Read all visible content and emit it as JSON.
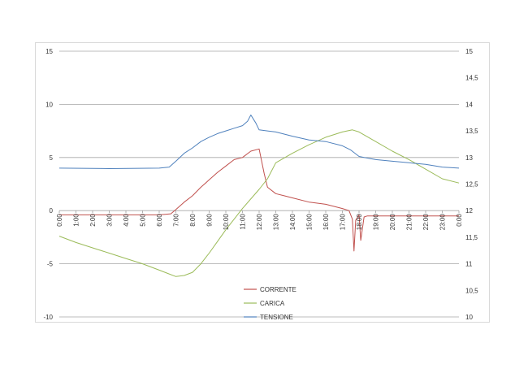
{
  "chart_data": {
    "type": "line",
    "title": "",
    "xlabel": "",
    "ylabel": "",
    "x_ticks": [
      "0:00",
      "1:00",
      "2:00",
      "3:00",
      "4:00",
      "5:00",
      "6:00",
      "7:00",
      "8:00",
      "9:00",
      "10:00",
      "11:00",
      "12:00",
      "13:00",
      "14:00",
      "15:00",
      "16:00",
      "17:00",
      "18:00",
      "19:00",
      "20:00",
      "21:00",
      "22:00",
      "23:00",
      "0:00"
    ],
    "y_left": {
      "ylim": [
        -10,
        15
      ],
      "ticks": [
        -10,
        -5,
        0,
        5,
        10,
        15
      ]
    },
    "y_right": {
      "ylim": [
        10,
        15
      ],
      "ticks": [
        "10",
        "10,5",
        "11",
        "11,5",
        "12",
        "12,5",
        "13",
        "13,5",
        "14",
        "14,5",
        "15"
      ]
    },
    "grid": true,
    "legend_position": "bottom-center",
    "series": [
      {
        "name": "CORRENTE",
        "axis": "left",
        "color": "#c0504d",
        "x": [
          0,
          6,
          6.7,
          7.0,
          7.5,
          8,
          8.5,
          9,
          9.5,
          10,
          10.5,
          11,
          11.5,
          12,
          12.3,
          12.5,
          13,
          13.5,
          14,
          15,
          16,
          17,
          17.4,
          17.6,
          17.7,
          17.8,
          18,
          18.1,
          18.3,
          18.5,
          19,
          20,
          21,
          22,
          23,
          24
        ],
        "y": [
          -0.4,
          -0.4,
          -0.3,
          0.1,
          0.8,
          1.4,
          2.2,
          2.9,
          3.6,
          4.2,
          4.8,
          5.0,
          5.6,
          5.8,
          3.5,
          2.2,
          1.6,
          1.4,
          1.2,
          0.8,
          0.6,
          0.2,
          0.0,
          -0.8,
          -3.8,
          -0.9,
          -0.4,
          -2.8,
          -0.6,
          -0.5,
          -0.5,
          -0.5,
          -0.5,
          -0.5,
          -0.5,
          -0.5
        ]
      },
      {
        "name": "CARICA",
        "axis": "left",
        "color": "#9bbb59",
        "x": [
          0,
          1,
          2,
          3,
          4,
          5,
          6,
          6.5,
          7.0,
          7.5,
          8,
          8.5,
          9,
          9.5,
          10,
          11,
          12,
          12.5,
          13,
          14,
          15,
          16,
          17,
          17.6,
          18,
          19,
          20,
          21,
          22,
          23,
          24
        ],
        "y": [
          -2.4,
          -3.0,
          -3.5,
          -4.0,
          -4.5,
          -5.0,
          -5.6,
          -5.9,
          -6.2,
          -6.1,
          -5.8,
          -5.0,
          -4.0,
          -2.9,
          -1.8,
          0.2,
          2.0,
          3.0,
          4.5,
          5.4,
          6.2,
          6.9,
          7.4,
          7.6,
          7.4,
          6.5,
          5.6,
          4.8,
          3.9,
          3.0,
          2.6
        ]
      },
      {
        "name": "TENSIONE",
        "axis": "right",
        "color": "#4f81bd",
        "x": [
          0,
          3,
          6,
          6.6,
          7.0,
          7.5,
          8,
          8.5,
          9,
          9.5,
          10,
          10.5,
          11,
          11.3,
          11.5,
          11.8,
          12,
          12.5,
          13,
          13.5,
          14,
          15,
          16,
          17,
          17.5,
          18,
          18.3,
          19,
          20,
          21,
          22,
          23,
          23.5,
          24
        ],
        "y": [
          12.8,
          12.79,
          12.8,
          12.82,
          12.93,
          13.08,
          13.18,
          13.3,
          13.38,
          13.45,
          13.5,
          13.55,
          13.6,
          13.68,
          13.8,
          13.65,
          13.52,
          13.5,
          13.48,
          13.44,
          13.4,
          13.33,
          13.3,
          13.22,
          13.14,
          13.02,
          13.0,
          12.96,
          12.93,
          12.9,
          12.87,
          12.82,
          12.81,
          12.8
        ]
      }
    ]
  }
}
